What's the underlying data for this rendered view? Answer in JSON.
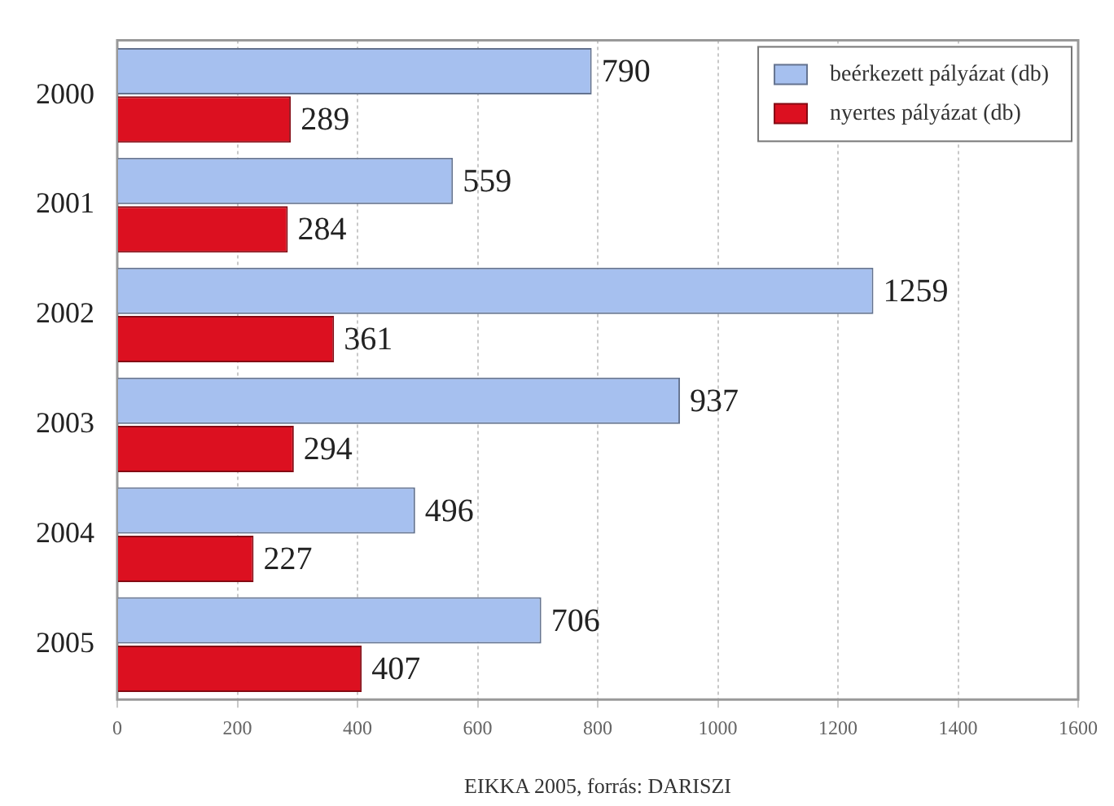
{
  "chart_data": {
    "type": "bar",
    "orientation": "horizontal",
    "categories": [
      "2000",
      "2001",
      "2002",
      "2003",
      "2004",
      "2005"
    ],
    "series": [
      {
        "name": "beérkezett pályázat (db)",
        "color": "#a6c0ef",
        "values": [
          790,
          559,
          1259,
          937,
          496,
          706
        ]
      },
      {
        "name": "nyertes pályázat (db)",
        "color": "#dc1020",
        "values": [
          289,
          284,
          361,
          294,
          227,
          407
        ]
      }
    ],
    "xlim": [
      0,
      1600
    ],
    "xticks": [
      0,
      200,
      400,
      600,
      800,
      1000,
      1200,
      1400,
      1600
    ],
    "grid": "x",
    "legend": "top right",
    "data_labels": true,
    "annotations": [
      "EIKKA 2005, forrás: DARISZI"
    ]
  }
}
